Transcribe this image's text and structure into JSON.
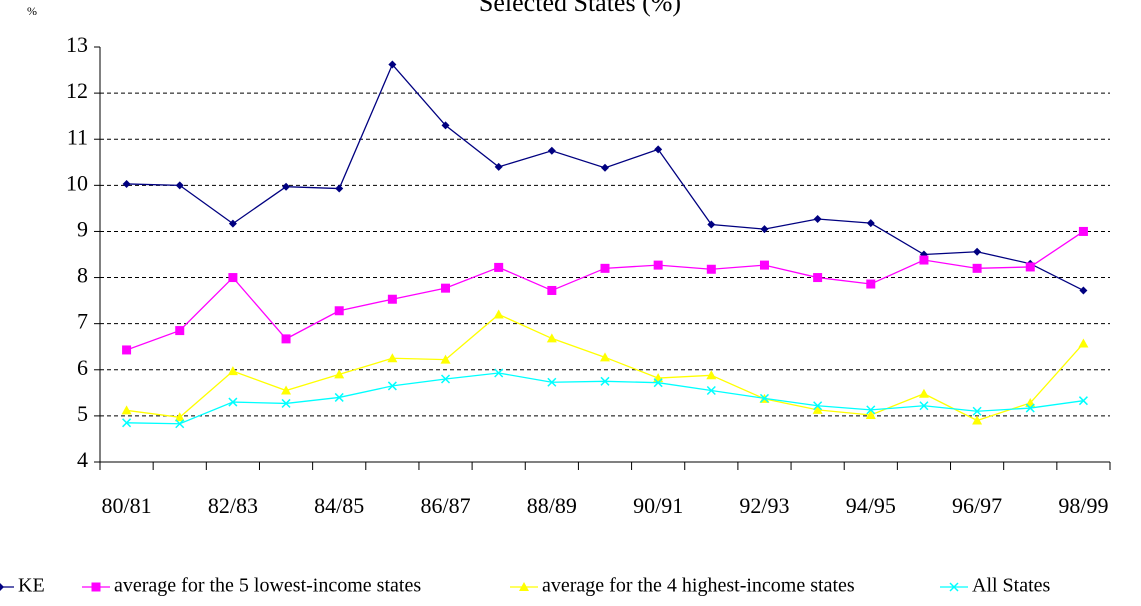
{
  "chart_data": {
    "type": "line",
    "title": "Selected States (%)",
    "y_label": "%",
    "categories": [
      "80/81",
      null,
      "82/83",
      null,
      "84/85",
      null,
      "86/87",
      null,
      "88/89",
      null,
      "90/91",
      null,
      "92/93",
      null,
      "94/95",
      null,
      "96/97",
      null,
      "98/99"
    ],
    "ylim": [
      4,
      13
    ],
    "yticks": [
      4,
      5,
      6,
      7,
      8,
      9,
      10,
      11,
      12,
      13
    ],
    "grid": true,
    "series": [
      {
        "name": "KE",
        "color": "#000080",
        "marker": "diamond",
        "values": [
          10.03,
          10.0,
          9.17,
          9.97,
          9.93,
          12.62,
          11.3,
          10.4,
          10.75,
          10.38,
          10.78,
          9.15,
          9.05,
          9.27,
          9.18,
          8.5,
          8.56,
          8.3,
          7.72
        ]
      },
      {
        "name": "average for the 5 lowest-income states",
        "color": "#FF00FF",
        "marker": "square",
        "values": [
          6.43,
          6.85,
          8.0,
          6.67,
          7.28,
          7.53,
          7.77,
          8.22,
          7.72,
          8.2,
          8.27,
          8.18,
          8.27,
          8.0,
          7.86,
          8.38,
          8.2,
          8.23,
          9.0
        ]
      },
      {
        "name": "average for the 4 highest-income states",
        "color": "#FFFF00",
        "marker": "triangle",
        "values": [
          5.12,
          4.97,
          5.97,
          5.55,
          5.9,
          6.25,
          6.22,
          7.2,
          6.68,
          6.27,
          5.82,
          5.88,
          5.37,
          5.13,
          5.02,
          5.48,
          4.9,
          5.28,
          6.57
        ]
      },
      {
        "name": "All States",
        "color": "#00FFFF",
        "marker": "x",
        "values": [
          4.85,
          4.83,
          5.3,
          5.27,
          5.4,
          5.65,
          5.8,
          5.93,
          5.73,
          5.75,
          5.72,
          5.55,
          5.38,
          5.22,
          5.13,
          5.22,
          5.1,
          5.17,
          5.33
        ]
      }
    ]
  }
}
